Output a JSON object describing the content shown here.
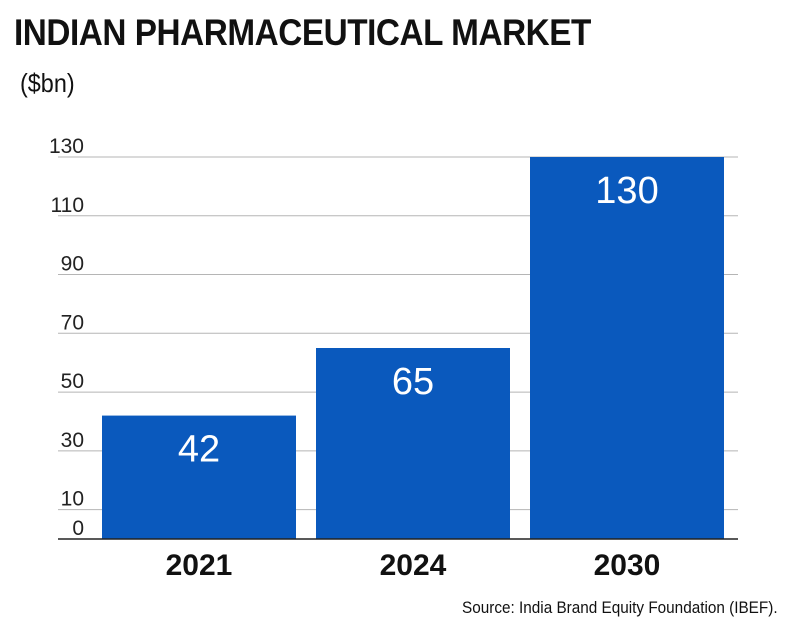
{
  "header": {
    "title": "INDIAN PHARMACEUTICAL MARKET",
    "unit": "($bn)"
  },
  "footer": {
    "source": "Source: India Brand Equity Foundation (IBEF)."
  },
  "colors": {
    "bar": "#0a59bd",
    "grid": "#b5b5b5",
    "axis": "#222222"
  },
  "chart_data": {
    "type": "bar",
    "title": "INDIAN PHARMACEUTICAL MARKET",
    "ylabel": "($bn)",
    "categories": [
      "2021",
      "2024",
      "2030"
    ],
    "values": [
      42,
      65,
      130
    ],
    "data_labels": [
      "42",
      "65",
      "130"
    ],
    "yticks": [
      0,
      10,
      30,
      50,
      70,
      90,
      110,
      130
    ],
    "ylim": [
      0,
      130
    ],
    "grid": true,
    "legend": "none"
  }
}
